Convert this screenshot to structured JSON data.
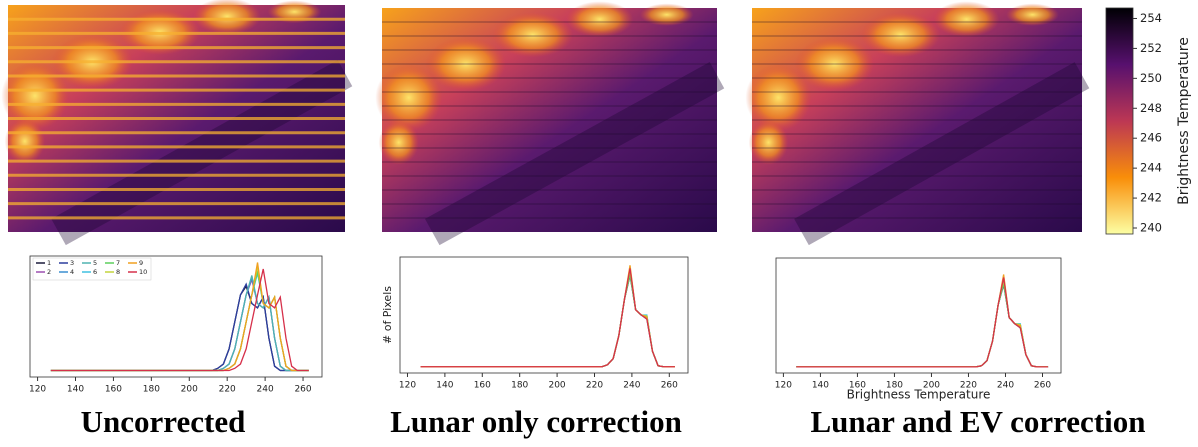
{
  "chart_data": [
    {
      "type": "line",
      "caption": "Uncorrected",
      "x": [
        127,
        200,
        212,
        215,
        218,
        221,
        224,
        227,
        230,
        233,
        236,
        239,
        242,
        245,
        248,
        251,
        254,
        257,
        260,
        263
      ],
      "xlim": [
        116,
        270
      ],
      "xticks": [
        120,
        140,
        160,
        180,
        200,
        220,
        240,
        260
      ],
      "ylim": [
        -6,
        106
      ],
      "legend": "upper left",
      "series": [
        {
          "name": "1",
          "color": "#1b1b3a",
          "values": [
            0,
            0,
            0,
            2,
            6,
            20,
            45,
            70,
            78,
            62,
            58,
            68,
            30,
            4,
            0,
            0,
            0,
            0,
            0,
            0
          ]
        },
        {
          "name": "2",
          "color": "#9c4fb0",
          "values": [
            0,
            0,
            0,
            0,
            2,
            6,
            20,
            45,
            70,
            84,
            62,
            58,
            68,
            30,
            4,
            0,
            0,
            0,
            0,
            0
          ]
        },
        {
          "name": "3",
          "color": "#2c3e9e",
          "values": [
            0,
            0,
            0,
            2,
            6,
            20,
            45,
            70,
            80,
            62,
            58,
            68,
            30,
            4,
            0,
            0,
            0,
            0,
            0,
            0
          ]
        },
        {
          "name": "4",
          "color": "#3a8fd1",
          "values": [
            0,
            0,
            0,
            0,
            2,
            6,
            20,
            45,
            70,
            86,
            62,
            58,
            68,
            30,
            4,
            0,
            0,
            0,
            0,
            0
          ]
        },
        {
          "name": "5",
          "color": "#4fb3b0",
          "values": [
            0,
            0,
            0,
            0,
            2,
            6,
            20,
            45,
            70,
            88,
            62,
            58,
            68,
            30,
            4,
            0,
            0,
            0,
            0,
            0
          ]
        },
        {
          "name": "6",
          "color": "#3fc1e0",
          "values": [
            0,
            0,
            0,
            0,
            0,
            2,
            6,
            20,
            45,
            70,
            90,
            62,
            58,
            68,
            30,
            4,
            0,
            0,
            0,
            0
          ]
        },
        {
          "name": "7",
          "color": "#5ccf5c",
          "values": [
            0,
            0,
            0,
            0,
            0,
            2,
            6,
            20,
            45,
            70,
            92,
            62,
            58,
            68,
            30,
            4,
            0,
            0,
            0,
            0
          ]
        },
        {
          "name": "8",
          "color": "#c2d43c",
          "values": [
            0,
            0,
            0,
            0,
            0,
            2,
            6,
            20,
            45,
            70,
            96,
            62,
            58,
            68,
            30,
            4,
            0,
            0,
            0,
            0
          ]
        },
        {
          "name": "9",
          "color": "#f0a020",
          "values": [
            0,
            0,
            0,
            0,
            0,
            2,
            6,
            20,
            45,
            70,
            100,
            62,
            58,
            68,
            30,
            4,
            0,
            0,
            0,
            0
          ]
        },
        {
          "name": "10",
          "color": "#d6304a",
          "values": [
            0,
            0,
            0,
            0,
            0,
            0,
            2,
            6,
            20,
            45,
            70,
            94,
            62,
            58,
            68,
            30,
            4,
            0,
            0,
            0
          ]
        }
      ]
    },
    {
      "type": "line",
      "caption": "Lunar only correction",
      "ylabel": "# of Pixels",
      "x": [
        127,
        200,
        212,
        215,
        218,
        221,
        224,
        227,
        230,
        233,
        236,
        239,
        242,
        245,
        248,
        251,
        254,
        257,
        260,
        263
      ],
      "xlim": [
        116,
        270
      ],
      "xticks": [
        120,
        140,
        160,
        180,
        200,
        220,
        240,
        260
      ],
      "ylim": [
        -6,
        106
      ],
      "series": [
        {
          "color": "#1b1b3a",
          "values": [
            0,
            0,
            0,
            0,
            0,
            0,
            0,
            2,
            8,
            30,
            65,
            90,
            55,
            50,
            48,
            15,
            1,
            0,
            0,
            0
          ]
        },
        {
          "color": "#9c4fb0",
          "values": [
            0,
            0,
            0,
            0,
            0,
            0,
            0,
            2,
            8,
            30,
            65,
            92,
            55,
            50,
            47,
            15,
            1,
            0,
            0,
            0
          ]
        },
        {
          "color": "#2c3e9e",
          "values": [
            0,
            0,
            0,
            0,
            0,
            0,
            0,
            2,
            8,
            30,
            65,
            88,
            55,
            50,
            49,
            15,
            1,
            0,
            0,
            0
          ]
        },
        {
          "color": "#3a8fd1",
          "values": [
            0,
            0,
            0,
            0,
            0,
            0,
            0,
            2,
            8,
            30,
            65,
            94,
            55,
            50,
            46,
            15,
            1,
            0,
            0,
            0
          ]
        },
        {
          "color": "#4fb3b0",
          "values": [
            0,
            0,
            0,
            0,
            0,
            0,
            0,
            2,
            8,
            30,
            65,
            91,
            55,
            50,
            48,
            15,
            1,
            0,
            0,
            0
          ]
        },
        {
          "color": "#3fc1e0",
          "values": [
            0,
            0,
            0,
            0,
            0,
            0,
            0,
            2,
            8,
            30,
            65,
            96,
            55,
            50,
            50,
            15,
            1,
            0,
            0,
            0
          ]
        },
        {
          "color": "#5ccf5c",
          "values": [
            0,
            0,
            0,
            0,
            0,
            0,
            0,
            2,
            8,
            30,
            65,
            89,
            55,
            50,
            47,
            15,
            1,
            0,
            0,
            0
          ]
        },
        {
          "color": "#c2d43c",
          "values": [
            0,
            0,
            0,
            0,
            0,
            0,
            0,
            2,
            8,
            30,
            65,
            93,
            55,
            50,
            49,
            15,
            1,
            0,
            0,
            0
          ]
        },
        {
          "color": "#f0a020",
          "values": [
            0,
            0,
            0,
            0,
            0,
            0,
            0,
            2,
            8,
            30,
            65,
            98,
            55,
            50,
            48,
            15,
            1,
            0,
            0,
            0
          ]
        },
        {
          "color": "#d6304a",
          "values": [
            0,
            0,
            0,
            0,
            0,
            0,
            0,
            2,
            8,
            30,
            65,
            95,
            55,
            50,
            46,
            15,
            1,
            0,
            0,
            0
          ]
        }
      ]
    },
    {
      "type": "line",
      "caption": "Lunar and EV correction",
      "xlabel": "Brightness Temperature",
      "x": [
        127,
        200,
        212,
        215,
        218,
        221,
        224,
        227,
        230,
        233,
        236,
        239,
        242,
        245,
        248,
        251,
        254,
        257,
        260,
        263
      ],
      "xlim": [
        116,
        270
      ],
      "xticks": [
        120,
        140,
        160,
        180,
        200,
        220,
        240,
        260
      ],
      "ylim": [
        -6,
        106
      ],
      "series": [
        {
          "color": "#1b1b3a",
          "values": [
            0,
            0,
            0,
            0,
            0,
            0,
            0,
            1,
            6,
            25,
            60,
            82,
            48,
            42,
            40,
            12,
            1,
            0,
            0,
            0
          ]
        },
        {
          "color": "#9c4fb0",
          "values": [
            0,
            0,
            0,
            0,
            0,
            0,
            0,
            1,
            6,
            25,
            60,
            84,
            48,
            42,
            39,
            12,
            1,
            0,
            0,
            0
          ]
        },
        {
          "color": "#2c3e9e",
          "values": [
            0,
            0,
            0,
            0,
            0,
            0,
            0,
            1,
            6,
            25,
            60,
            80,
            48,
            42,
            41,
            12,
            1,
            0,
            0,
            0
          ]
        },
        {
          "color": "#3a8fd1",
          "values": [
            0,
            0,
            0,
            0,
            0,
            0,
            0,
            1,
            6,
            25,
            60,
            86,
            48,
            42,
            38,
            12,
            1,
            0,
            0,
            0
          ]
        },
        {
          "color": "#4fb3b0",
          "values": [
            0,
            0,
            0,
            0,
            0,
            0,
            0,
            1,
            6,
            25,
            60,
            83,
            48,
            42,
            40,
            12,
            1,
            0,
            0,
            0
          ]
        },
        {
          "color": "#3fc1e0",
          "values": [
            0,
            0,
            0,
            0,
            0,
            0,
            0,
            1,
            6,
            25,
            60,
            88,
            48,
            42,
            42,
            12,
            1,
            0,
            0,
            0
          ]
        },
        {
          "color": "#5ccf5c",
          "values": [
            0,
            0,
            0,
            0,
            0,
            0,
            0,
            1,
            6,
            25,
            60,
            81,
            48,
            42,
            39,
            12,
            1,
            0,
            0,
            0
          ]
        },
        {
          "color": "#c2d43c",
          "values": [
            0,
            0,
            0,
            0,
            0,
            0,
            0,
            1,
            6,
            25,
            60,
            85,
            48,
            42,
            41,
            12,
            1,
            0,
            0,
            0
          ]
        },
        {
          "color": "#f0a020",
          "values": [
            0,
            0,
            0,
            0,
            0,
            0,
            0,
            1,
            6,
            25,
            60,
            90,
            48,
            42,
            40,
            12,
            1,
            0,
            0,
            0
          ]
        },
        {
          "color": "#d6304a",
          "values": [
            0,
            0,
            0,
            0,
            0,
            0,
            0,
            1,
            6,
            25,
            60,
            87,
            48,
            42,
            38,
            12,
            1,
            0,
            0,
            0
          ]
        }
      ]
    },
    {
      "type": "colorbar",
      "label": "Brightness Temperature",
      "ylim": [
        239.6,
        254.7
      ],
      "yticks": [
        240,
        242,
        244,
        246,
        248,
        250,
        252,
        254
      ],
      "colors": [
        "#fcffa4",
        "#f98e09",
        "#bc3754",
        "#57106e",
        "#000004"
      ]
    }
  ]
}
